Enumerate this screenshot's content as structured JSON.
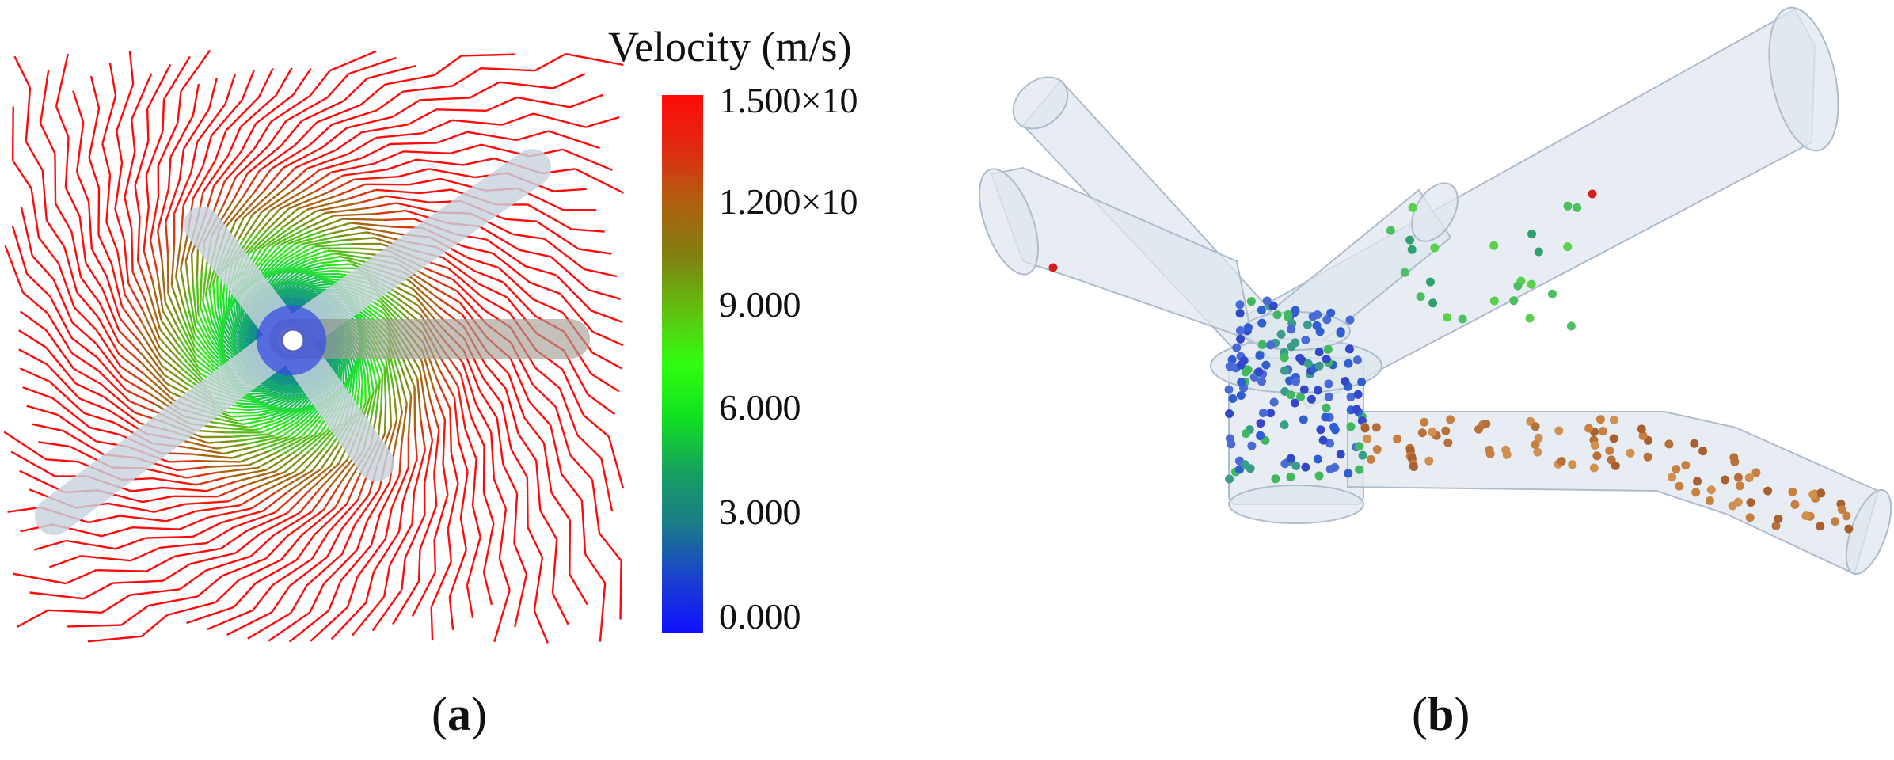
{
  "legend": {
    "title": "Velocity (m/s)",
    "ticks": [
      "1.500×10",
      "1.200×10",
      "9.000",
      "6.000",
      "3.000",
      "0.000"
    ],
    "colors": {
      "max": "#ff0a0a",
      "high": "#b06010",
      "mid": "#30ff10",
      "low": "#1a7a8a",
      "min": "#1010ff"
    }
  },
  "panels": [
    {
      "label_open": "(",
      "letter": "a",
      "label_close": ")"
    },
    {
      "label_open": "(",
      "letter": "b",
      "label_close": ")"
    }
  ]
}
